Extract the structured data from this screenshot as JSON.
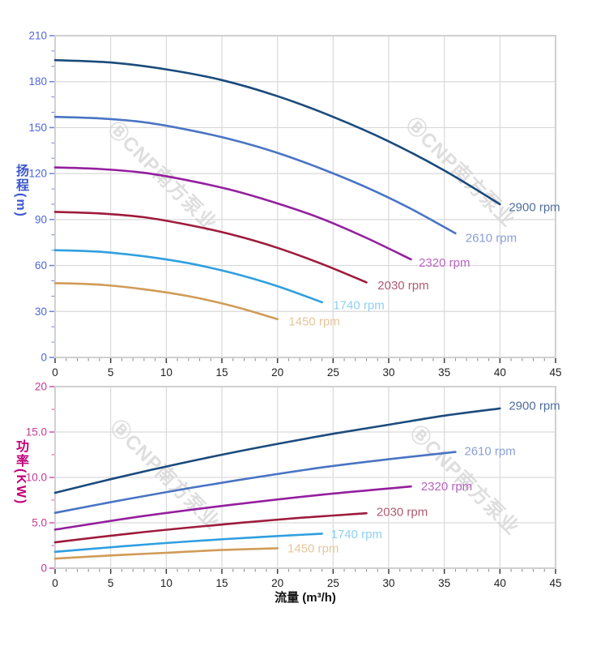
{
  "page": {
    "background": "#ffffff"
  },
  "watermark": {
    "logo_glyph": "Ⓑ",
    "text": "CNP南方泵业",
    "color": "#d7d7d7"
  },
  "axes_text": {
    "flow_title": "流量 (m³/h)",
    "head_axis": "扬程(m)",
    "power_axis": "功率(KW)"
  },
  "chart_data": [
    {
      "id": "head",
      "type": "line",
      "title": "",
      "xlabel": "流量 (m³/h)",
      "ylabel": "扬程 (m)",
      "xlim": [
        0,
        45
      ],
      "ylim": [
        0,
        210
      ],
      "grid": true,
      "legend_position": "end-of-line-labels",
      "x_ticks": {
        "major": 5,
        "minor": 1,
        "labels": [
          "0",
          "5",
          "10",
          "15",
          "20",
          "25",
          "30",
          "35",
          "40",
          "45"
        ]
      },
      "y_ticks": {
        "major": 30,
        "minor": 10,
        "labels": [
          "0",
          "30",
          "60",
          "90",
          "120",
          "150",
          "180",
          "210"
        ]
      },
      "tick_color": "#6b82e0",
      "tick_label_color": "#4f66d6",
      "x_tick_color": "#3a3a3a",
      "x_tick_label_color": "#222222",
      "series": [
        {
          "name": "2900 rpm",
          "color": "#1b4b7c",
          "label_color": "#4f6f9c",
          "label_at": [
            40.8,
            98
          ],
          "points": [
            [
              0,
              194
            ],
            [
              5,
              192.5
            ],
            [
              10,
              188
            ],
            [
              15,
              181
            ],
            [
              20,
              170.5
            ],
            [
              25,
              157
            ],
            [
              30,
              141
            ],
            [
              35,
              122
            ],
            [
              40,
              100
            ]
          ]
        },
        {
          "name": "2610 rpm",
          "color": "#4a74c4",
          "label_color": "#8ba0d6",
          "label_at": [
            36.9,
            78
          ],
          "points": [
            [
              0,
              157
            ],
            [
              4,
              156
            ],
            [
              8,
              153.5
            ],
            [
              12,
              148.5
            ],
            [
              16,
              142
            ],
            [
              20,
              133.5
            ],
            [
              24,
              123
            ],
            [
              28,
              111
            ],
            [
              32,
              97
            ],
            [
              36,
              81
            ]
          ]
        },
        {
          "name": "2320 rpm",
          "color": "#941f9e",
          "label_color": "#b964c2",
          "label_at": [
            32.7,
            62
          ],
          "points": [
            [
              0,
              124
            ],
            [
              4,
              123
            ],
            [
              8,
              120.5
            ],
            [
              12,
              115.5
            ],
            [
              16,
              109
            ],
            [
              20,
              100.5
            ],
            [
              24,
              90.5
            ],
            [
              28,
              78
            ],
            [
              32,
              64
            ]
          ]
        },
        {
          "name": "2030 rpm",
          "color": "#9e1b3c",
          "label_color": "#b05a72",
          "label_at": [
            29.0,
            47
          ],
          "points": [
            [
              0,
              95
            ],
            [
              4,
              94
            ],
            [
              8,
              91.5
            ],
            [
              12,
              86.5
            ],
            [
              16,
              80
            ],
            [
              20,
              71.5
            ],
            [
              24,
              61
            ],
            [
              28,
              49
            ]
          ]
        },
        {
          "name": "1740 rpm",
          "color": "#2f9fe0",
          "label_color": "#8fd0f2",
          "label_at": [
            25.0,
            34
          ],
          "points": [
            [
              0,
              70
            ],
            [
              4,
              69
            ],
            [
              8,
              66
            ],
            [
              12,
              61.5
            ],
            [
              16,
              55
            ],
            [
              20,
              46.5
            ],
            [
              24,
              36
            ]
          ]
        },
        {
          "name": "1450 rpm",
          "color": "#d09c58",
          "label_color": "#e4c69c",
          "label_at": [
            21.0,
            23.5
          ],
          "points": [
            [
              0,
              48.5
            ],
            [
              4,
              47.5
            ],
            [
              8,
              44.5
            ],
            [
              12,
              40
            ],
            [
              16,
              33.5
            ],
            [
              20,
              25
            ]
          ]
        }
      ]
    },
    {
      "id": "power",
      "type": "line",
      "title": "",
      "xlabel": "流量 (m³/h)",
      "ylabel": "功率 (KW)",
      "xlim": [
        0,
        45
      ],
      "ylim": [
        0,
        20
      ],
      "grid": true,
      "legend_position": "end-of-line-labels",
      "x_ticks": {
        "major": 5,
        "minor": 1,
        "labels": [
          "0",
          "5",
          "10",
          "15",
          "20",
          "25",
          "30",
          "35",
          "40",
          "45"
        ]
      },
      "y_ticks": {
        "major": 5,
        "minor": 2.5,
        "labels": [
          "0",
          "5.0",
          "10.0",
          "15.0",
          "20"
        ]
      },
      "tick_color": "#d052a8",
      "tick_label_color": "#c43a96",
      "x_tick_color": "#3a3a3a",
      "x_tick_label_color": "#222222",
      "series": [
        {
          "name": "2900 rpm",
          "color": "#1b4b7c",
          "label_color": "#4f6f9c",
          "label_at": [
            40.8,
            17.9
          ],
          "points": [
            [
              0,
              8.3
            ],
            [
              5,
              9.8
            ],
            [
              10,
              11.2
            ],
            [
              15,
              12.5
            ],
            [
              20,
              13.7
            ],
            [
              25,
              14.8
            ],
            [
              30,
              15.8
            ],
            [
              35,
              16.8
            ],
            [
              40,
              17.6
            ]
          ]
        },
        {
          "name": "2610 rpm",
          "color": "#4a74c4",
          "label_color": "#8ba0d6",
          "label_at": [
            36.8,
            12.9
          ],
          "points": [
            [
              0,
              6.1
            ],
            [
              6,
              7.5
            ],
            [
              12,
              8.8
            ],
            [
              18,
              10.0
            ],
            [
              24,
              11.1
            ],
            [
              30,
              12.0
            ],
            [
              36,
              12.8
            ]
          ]
        },
        {
          "name": "2320 rpm",
          "color": "#941f9e",
          "label_color": "#b964c2",
          "label_at": [
            32.9,
            9.0
          ],
          "points": [
            [
              0,
              4.25
            ],
            [
              8,
              5.75
            ],
            [
              16,
              7.0
            ],
            [
              24,
              8.1
            ],
            [
              32,
              9.0
            ]
          ]
        },
        {
          "name": "2030 rpm",
          "color": "#9e1b3c",
          "label_color": "#b05a72",
          "label_at": [
            28.9,
            6.2
          ],
          "points": [
            [
              0,
              2.85
            ],
            [
              7,
              3.85
            ],
            [
              14,
              4.7
            ],
            [
              21,
              5.45
            ],
            [
              28,
              6.05
            ]
          ]
        },
        {
          "name": "1740 rpm",
          "color": "#2f9fe0",
          "label_color": "#8fd0f2",
          "label_at": [
            24.8,
            3.75
          ],
          "points": [
            [
              0,
              1.8
            ],
            [
              6,
              2.4
            ],
            [
              12,
              2.95
            ],
            [
              18,
              3.4
            ],
            [
              24,
              3.8
            ]
          ]
        },
        {
          "name": "1450 rpm",
          "color": "#d09c58",
          "label_color": "#e4c69c",
          "label_at": [
            20.9,
            2.2
          ],
          "points": [
            [
              0,
              1.05
            ],
            [
              5,
              1.4
            ],
            [
              10,
              1.7
            ],
            [
              15,
              2.0
            ],
            [
              20,
              2.2
            ]
          ]
        }
      ]
    }
  ]
}
